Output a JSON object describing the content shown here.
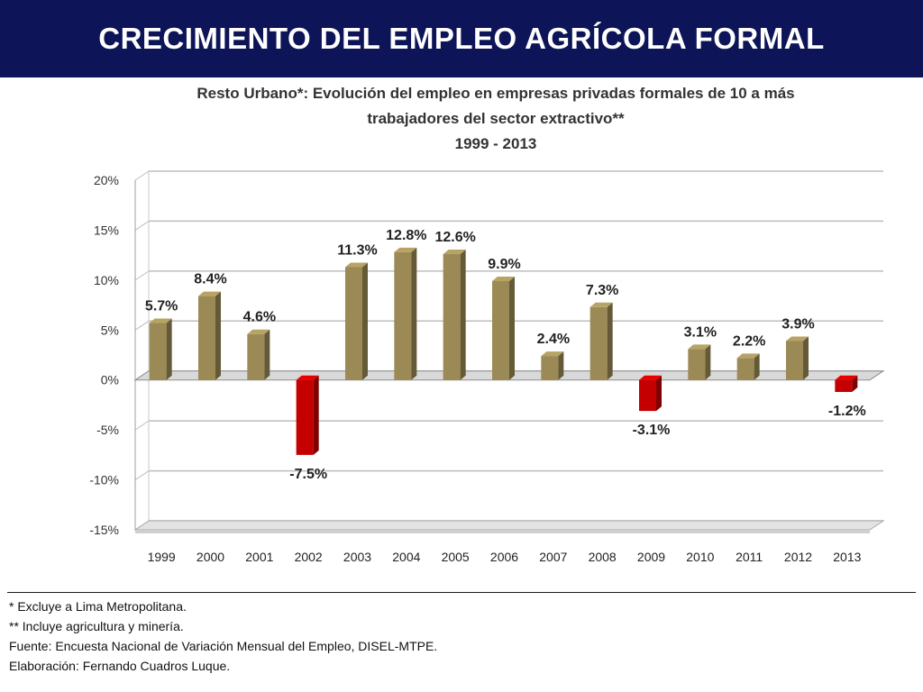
{
  "header": {
    "title": "CRECIMIENTO DEL EMPLEO AGRÍCOLA FORMAL",
    "background": "#0d1457"
  },
  "chart_data": {
    "type": "bar",
    "title_lines": [
      "Resto Urbano*: Evolución del empleo en empresas privadas formales de 10 a más",
      "trabajadores del sector extractivo**",
      "1999  - 2013"
    ],
    "categories": [
      "1999",
      "2000",
      "2001",
      "2002",
      "2003",
      "2004",
      "2005",
      "2006",
      "2007",
      "2008",
      "2009",
      "2010",
      "2011",
      "2012",
      "2013"
    ],
    "values": [
      5.7,
      8.4,
      4.6,
      -7.5,
      11.3,
      12.8,
      12.6,
      9.9,
      2.4,
      7.3,
      -3.1,
      3.1,
      2.2,
      3.9,
      -1.2
    ],
    "data_labels": [
      "5.7%",
      "8.4%",
      "4.6%",
      "-7.5%",
      "11.3%",
      "12.8%",
      "12.6%",
      "9.9%",
      "2.4%",
      "7.3%",
      "-3.1%",
      "3.1%",
      "2.2%",
      "3.9%",
      "-1.2%"
    ],
    "y_ticks": [
      20,
      15,
      10,
      5,
      0,
      -5,
      -10,
      -15
    ],
    "y_tick_labels": [
      "20%",
      "15%",
      "10%",
      "5%",
      "0%",
      "-5%",
      "-10%",
      "-15%"
    ],
    "ylim": [
      -15,
      20
    ],
    "grid": true,
    "legend": "none",
    "colors": {
      "positive": "#9b8a55",
      "negative": "#c40000"
    }
  },
  "notes": [
    "* Excluye a Lima Metropolitana.",
    "** Incluye agricultura y minería.",
    "Fuente: Encuesta Nacional de Variación Mensual del Empleo, DISEL-MTPE.",
    "Elaboración: Fernando Cuadros Luque."
  ]
}
